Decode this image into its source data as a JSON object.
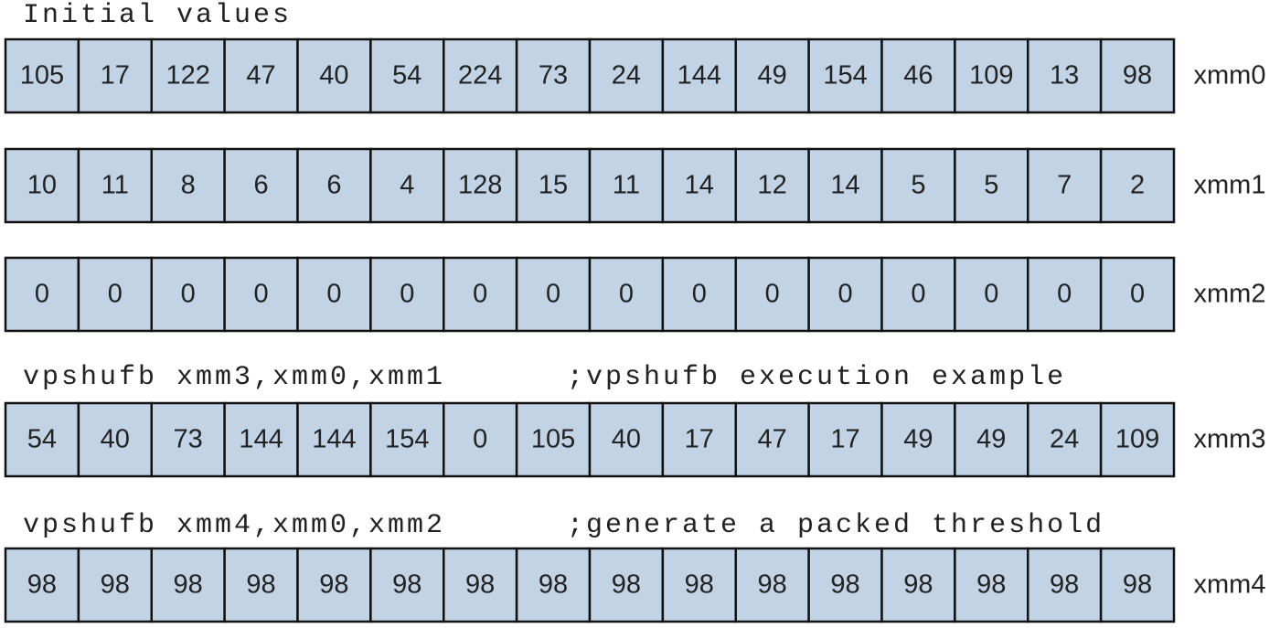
{
  "title": "Initial values",
  "registers": [
    {
      "name": "xmm0",
      "values": [
        105,
        17,
        122,
        47,
        40,
        54,
        224,
        73,
        24,
        144,
        49,
        154,
        46,
        109,
        13,
        98
      ]
    },
    {
      "name": "xmm1",
      "values": [
        10,
        11,
        8,
        6,
        6,
        4,
        128,
        15,
        11,
        14,
        12,
        14,
        5,
        5,
        7,
        2
      ]
    },
    {
      "name": "xmm2",
      "values": [
        0,
        0,
        0,
        0,
        0,
        0,
        0,
        0,
        0,
        0,
        0,
        0,
        0,
        0,
        0,
        0
      ]
    },
    {
      "name": "xmm3",
      "values": [
        54,
        40,
        73,
        144,
        144,
        154,
        0,
        105,
        40,
        17,
        47,
        17,
        49,
        49,
        24,
        109
      ]
    },
    {
      "name": "xmm4",
      "values": [
        98,
        98,
        98,
        98,
        98,
        98,
        98,
        98,
        98,
        98,
        98,
        98,
        98,
        98,
        98,
        98
      ]
    }
  ],
  "annotations": [
    {
      "instruction": "vpshufb xmm3,xmm0,xmm1",
      "comment": ";vpshufb execution example"
    },
    {
      "instruction": "vpshufb xmm4,xmm0,xmm2",
      "comment": ";generate a packed threshold"
    }
  ]
}
